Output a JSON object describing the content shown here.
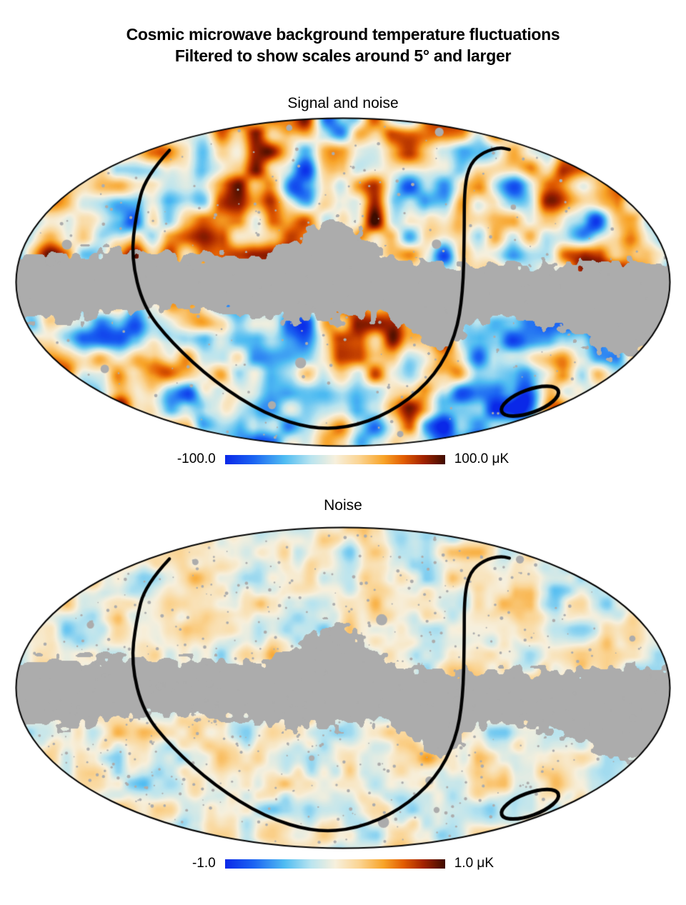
{
  "header": {
    "title_line1": "Cosmic microwave background temperature fluctuations",
    "title_line2": "Filtered to show scales around 5° and larger"
  },
  "maps": [
    {
      "title": "Signal and noise",
      "colorbar": {
        "min_label": "-100.0",
        "max_label": "100.0 μK"
      }
    },
    {
      "title": "Noise",
      "colorbar": {
        "min_label": "-1.0",
        "max_label": "1.0 μK"
      }
    }
  ],
  "colors": {
    "background": "#FFFFFF",
    "text": "#000000",
    "mask_gray": "#ACACAC",
    "contour_black": "#000000",
    "palette": [
      [
        0.0,
        "#0A28E8"
      ],
      [
        0.13,
        "#1B64F2"
      ],
      [
        0.27,
        "#4FBCF2"
      ],
      [
        0.39,
        "#B9E4EF"
      ],
      [
        0.5,
        "#F7F0DD"
      ],
      [
        0.61,
        "#FBD492"
      ],
      [
        0.72,
        "#F8A428"
      ],
      [
        0.81,
        "#E25D02"
      ],
      [
        0.9,
        "#A32300"
      ],
      [
        1.0,
        "#3E0C00"
      ]
    ]
  },
  "sky_annotations": {
    "contour_uv": [
      [
        -0.531,
        -0.804
      ],
      [
        -0.605,
        -0.643
      ],
      [
        -0.633,
        -0.413
      ],
      [
        -0.648,
        -0.152
      ],
      [
        -0.611,
        0.152
      ],
      [
        -0.524,
        0.37
      ],
      [
        -0.393,
        0.609
      ],
      [
        -0.24,
        0.804
      ],
      [
        -0.087,
        0.9
      ],
      [
        0.044,
        0.878
      ],
      [
        0.175,
        0.761
      ],
      [
        0.284,
        0.565
      ],
      [
        0.345,
        0.326
      ],
      [
        0.367,
        0.065
      ],
      [
        0.371,
        -0.283
      ],
      [
        0.371,
        -0.578
      ],
      [
        0.389,
        -0.726
      ],
      [
        0.432,
        -0.796
      ],
      [
        0.48,
        -0.822
      ],
      [
        0.509,
        -0.809
      ]
    ],
    "cold_spot_ellipse": {
      "center_uv": [
        0.572,
        0.726
      ],
      "semi_axes_uv": [
        0.092,
        0.07
      ],
      "rotation_deg": -20
    }
  },
  "chart_data": [
    {
      "type": "heatmap",
      "projection": "mollweide-sky-map",
      "title": "Signal and noise",
      "quantity": "CMB temperature fluctuation",
      "units": "μK",
      "scale_min": -100.0,
      "scale_max": 100.0,
      "colorbar_tick_labels": [
        "-100.0",
        "100.0 μK"
      ],
      "masked_region": "galactic plane and point sources shown in gray",
      "annotations": [
        "large circular sky contour crossing projection top edge",
        "small ellipse marking the Cold Spot (lower right)"
      ],
      "legend_position": "below map, centered"
    },
    {
      "type": "heatmap",
      "projection": "mollweide-sky-map",
      "title": "Noise",
      "quantity": "noise temperature fluctuation",
      "units": "μK",
      "scale_min": -1.0,
      "scale_max": 1.0,
      "colorbar_tick_labels": [
        "-1.0",
        "1.0 μK"
      ],
      "masked_region": "galactic plane and point sources shown in gray",
      "annotations": [
        "large circular sky contour crossing projection top edge",
        "small ellipse marking the Cold Spot (lower right)"
      ],
      "legend_position": "below map, centered"
    }
  ]
}
